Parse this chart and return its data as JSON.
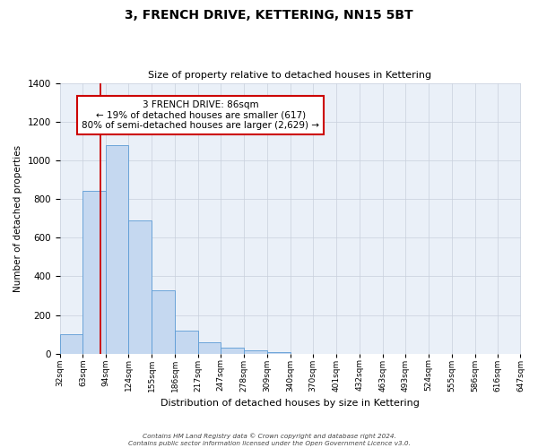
{
  "title": "3, FRENCH DRIVE, KETTERING, NN15 5BT",
  "subtitle": "Size of property relative to detached houses in Kettering",
  "xlabel": "Distribution of detached houses by size in Kettering",
  "ylabel": "Number of detached properties",
  "bar_values": [
    100,
    840,
    1080,
    690,
    330,
    120,
    60,
    30,
    15,
    10,
    0,
    0,
    0,
    0,
    0,
    0,
    0,
    0,
    0,
    0
  ],
  "categories": [
    "32sqm",
    "63sqm",
    "94sqm",
    "124sqm",
    "155sqm",
    "186sqm",
    "217sqm",
    "247sqm",
    "278sqm",
    "309sqm",
    "340sqm",
    "370sqm",
    "401sqm",
    "432sqm",
    "463sqm",
    "493sqm",
    "524sqm",
    "555sqm",
    "586sqm",
    "616sqm",
    "647sqm"
  ],
  "bar_color": "#c5d8f0",
  "bar_edge_color": "#5b9bd5",
  "property_line_x": 86,
  "bin_edges": [
    32,
    63,
    94,
    124,
    155,
    186,
    217,
    247,
    278,
    309,
    340,
    370,
    401,
    432,
    463,
    493,
    524,
    555,
    586,
    616,
    647
  ],
  "ylim": [
    0,
    1400
  ],
  "yticks": [
    0,
    200,
    400,
    600,
    800,
    1000,
    1200,
    1400
  ],
  "red_line_color": "#cc0000",
  "annotation_line1": "3 FRENCH DRIVE: 86sqm",
  "annotation_line2": "← 19% of detached houses are smaller (617)",
  "annotation_line3": "80% of semi-detached houses are larger (2,629) →",
  "annotation_box_color": "#ffffff",
  "annotation_box_edge": "#cc0000",
  "footer_line1": "Contains HM Land Registry data © Crown copyright and database right 2024.",
  "footer_line2": "Contains public sector information licensed under the Open Government Licence v3.0.",
  "background_color": "#ffffff",
  "plot_bg_color": "#eaf0f8",
  "grid_color": "#c8d0dc"
}
